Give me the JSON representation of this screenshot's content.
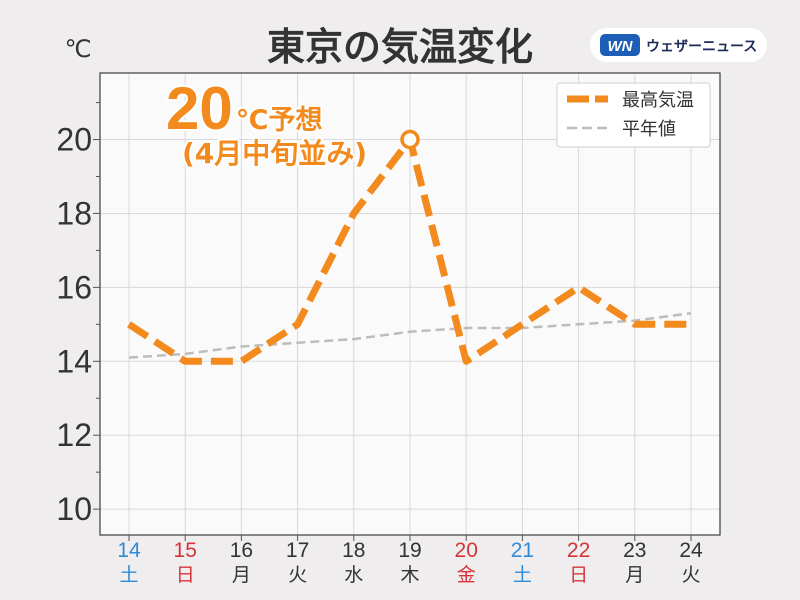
{
  "logo": {
    "mark": "WN",
    "text": "ウェザーニュース"
  },
  "colors": {
    "background": "#efeded",
    "plot_background": "#fbfafb",
    "grid": "#d9d9d9",
    "text": "#333333",
    "logo_blue": "#1d5fb6",
    "logo_text": "#1b2a57"
  },
  "chart_data": {
    "type": "line",
    "title": "東京の気温変化",
    "ylabel": "℃",
    "xlabel": "",
    "x": [
      "14",
      "15",
      "16",
      "17",
      "18",
      "19",
      "20",
      "21",
      "22",
      "23",
      "24"
    ],
    "x_weekdays": [
      "土",
      "日",
      "月",
      "火",
      "水",
      "木",
      "金",
      "土",
      "日",
      "月",
      "火"
    ],
    "x_label_colors": [
      "#2e8bd6",
      "#d8333a",
      "#333333",
      "#333333",
      "#333333",
      "#333333",
      "#d8333a",
      "#2e8bd6",
      "#d8333a",
      "#333333",
      "#333333"
    ],
    "ylim": [
      9.3,
      21.8
    ],
    "yticks": [
      10,
      12,
      14,
      16,
      18,
      20
    ],
    "grid": true,
    "legend": "top-right",
    "series": [
      {
        "name": "最高気温",
        "color": "#f28a1e",
        "line_style": "dashed",
        "values": [
          15,
          14,
          14,
          15,
          18,
          20,
          14,
          15,
          16,
          15,
          15
        ],
        "marker_at": "19"
      },
      {
        "name": "平年値",
        "color": "#bdbdbd",
        "line_style": "dashed",
        "values": [
          14.1,
          14.2,
          14.4,
          14.5,
          14.6,
          14.8,
          14.9,
          14.9,
          15.0,
          15.1,
          15.3
        ]
      }
    ],
    "annotation": {
      "value": "20",
      "unit": "℃予想",
      "note": "(4月中旬並み)",
      "color": "#f28a1e"
    }
  }
}
